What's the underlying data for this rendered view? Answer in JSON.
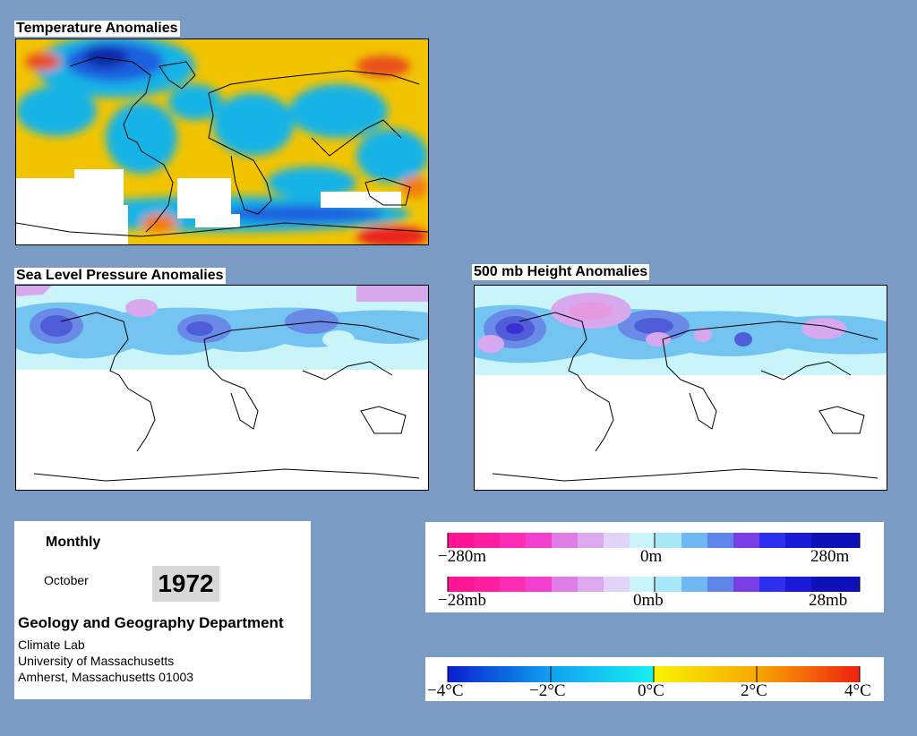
{
  "maps": {
    "temperature_title": "Temperature Anomalies",
    "slp_title": "Sea Level Pressure Anomalies",
    "height_title": "500 mb Height Anomalies"
  },
  "info": {
    "period": "Monthly",
    "month": "October",
    "year": "1972",
    "department": "Geology and Geography Department",
    "lab": "Climate Lab",
    "university": "University of Massachusetts",
    "address": "Amherst, Massachusetts 01003"
  },
  "legends": {
    "height": {
      "min": "−280m",
      "mid": "0m",
      "max": "280m"
    },
    "pressure": {
      "min": "−28mb",
      "mid": "0mb",
      "max": "28mb"
    },
    "temperature": {
      "l1": "−4°C",
      "l2": "−2°C",
      "l3": "0°C",
      "l4": "2°C",
      "l5": "4°C"
    }
  },
  "colors": {
    "background": "#7a9bc4",
    "warm": "#f5c400",
    "cool": "#19b3e6",
    "cold_deep": "#1238d6",
    "hot_deep": "#e8201a",
    "pressure_low": "#6fb0f0",
    "pressure_high": "#d7a8ee"
  }
}
